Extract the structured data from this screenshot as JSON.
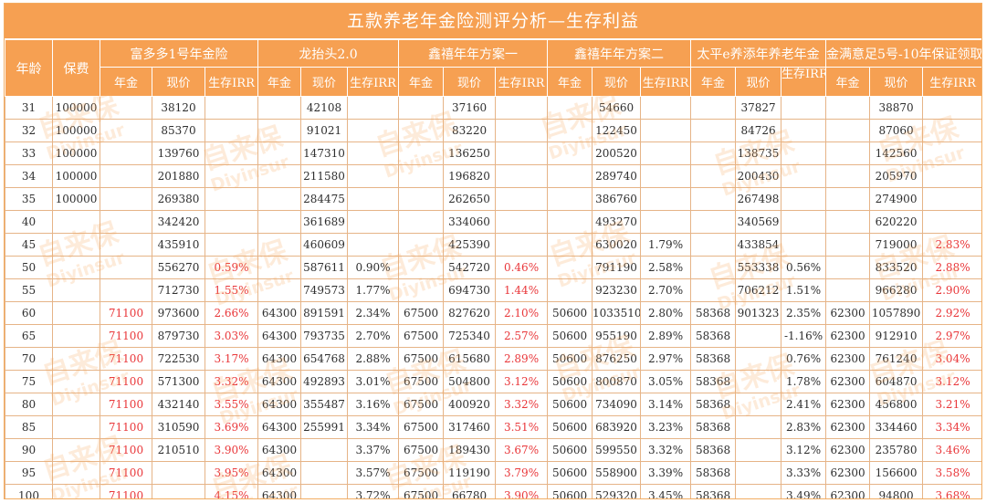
{
  "title": "五款养老年金险测评分析—生存利益",
  "headers": {
    "age": "年龄",
    "premium": "保费",
    "products": [
      "富多多1号年金险",
      "龙抬头2.0",
      "鑫禧年年方案一",
      "鑫禧年年方案二",
      "太平e养添年养老年金",
      "金满意足5号-10年保证领取"
    ],
    "sub": [
      "年金",
      "现价",
      "生存IRR"
    ]
  },
  "rows": [
    [
      "31",
      "100000",
      "",
      "38120",
      "",
      "",
      "42108",
      "",
      "",
      "37160",
      "",
      "",
      "54660",
      "",
      "",
      "37827",
      "",
      "",
      "38870",
      ""
    ],
    [
      "32",
      "100000",
      "",
      "85370",
      "",
      "",
      "91021",
      "",
      "",
      "83220",
      "",
      "",
      "122450",
      "",
      "",
      "84726",
      "",
      "",
      "87060",
      ""
    ],
    [
      "33",
      "100000",
      "",
      "139760",
      "",
      "",
      "147310",
      "",
      "",
      "136250",
      "",
      "",
      "200520",
      "",
      "",
      "138735",
      "",
      "",
      "142560",
      ""
    ],
    [
      "34",
      "100000",
      "",
      "201880",
      "",
      "",
      "211580",
      "",
      "",
      "196820",
      "",
      "",
      "289740",
      "",
      "",
      "200430",
      "",
      "",
      "205970",
      ""
    ],
    [
      "35",
      "100000",
      "",
      "269380",
      "",
      "",
      "284475",
      "",
      "",
      "262650",
      "",
      "",
      "386760",
      "",
      "",
      "267498",
      "",
      "",
      "274900",
      ""
    ],
    [
      "40",
      "",
      "",
      "342420",
      "",
      "",
      "361689",
      "",
      "",
      "334060",
      "",
      "",
      "493270",
      "",
      "",
      "340569",
      "",
      "",
      "620220",
      ""
    ],
    [
      "45",
      "",
      "",
      "435910",
      "",
      "",
      "460609",
      "",
      "",
      "425390",
      "",
      "",
      "630020",
      "1.79%",
      "",
      "433854",
      "",
      "",
      "719000",
      "2.83%"
    ],
    [
      "50",
      "",
      "",
      "556270",
      "0.59%",
      "",
      "587611",
      "0.90%",
      "",
      "542720",
      "0.46%",
      "",
      "791190",
      "2.58%",
      "",
      "553338",
      "0.56%",
      "",
      "833520",
      "2.88%"
    ],
    [
      "55",
      "",
      "",
      "712730",
      "1.55%",
      "",
      "749573",
      "1.77%",
      "",
      "694730",
      "1.44%",
      "",
      "923230",
      "2.70%",
      "",
      "706212",
      "1.51%",
      "",
      "966280",
      "2.90%"
    ],
    [
      "60",
      "",
      "71100",
      "973600",
      "2.66%",
      "64300",
      "891591",
      "2.34%",
      "67500",
      "827620",
      "2.10%",
      "50600",
      "1033510",
      "2.80%",
      "58368",
      "901323",
      "2.35%",
      "62300",
      "1057890",
      "2.92%"
    ],
    [
      "65",
      "",
      "71100",
      "879730",
      "3.03%",
      "64300",
      "793735",
      "2.70%",
      "67500",
      "725340",
      "2.57%",
      "50600",
      "955190",
      "2.89%",
      "58368",
      "",
      "-1.16%",
      "62300",
      "912910",
      "2.97%"
    ],
    [
      "70",
      "",
      "71100",
      "722530",
      "3.17%",
      "64300",
      "654768",
      "2.88%",
      "67500",
      "615680",
      "2.89%",
      "50600",
      "876250",
      "2.97%",
      "58368",
      "",
      "0.76%",
      "62300",
      "761240",
      "3.04%"
    ],
    [
      "75",
      "",
      "71100",
      "571300",
      "3.32%",
      "64300",
      "492893",
      "3.01%",
      "67500",
      "504800",
      "3.12%",
      "50600",
      "800870",
      "3.05%",
      "58368",
      "",
      "1.78%",
      "62300",
      "604870",
      "3.12%"
    ],
    [
      "80",
      "",
      "71100",
      "432140",
      "3.55%",
      "64300",
      "355487",
      "3.16%",
      "67500",
      "400920",
      "3.32%",
      "50600",
      "734090",
      "3.14%",
      "58368",
      "",
      "2.41%",
      "62300",
      "456800",
      "3.21%"
    ],
    [
      "85",
      "",
      "71100",
      "310590",
      "3.69%",
      "64300",
      "255991",
      "3.34%",
      "67500",
      "317460",
      "3.51%",
      "50600",
      "683920",
      "3.23%",
      "58368",
      "",
      "2.83%",
      "62300",
      "334460",
      "3.34%"
    ],
    [
      "90",
      "",
      "71100",
      "210510",
      "3.90%",
      "64300",
      "",
      "3.37%",
      "67500",
      "189430",
      "3.67%",
      "50600",
      "599550",
      "3.32%",
      "58368",
      "",
      "3.12%",
      "62300",
      "235780",
      "3.46%"
    ],
    [
      "95",
      "",
      "71100",
      "",
      "3.95%",
      "64300",
      "",
      "3.57%",
      "67500",
      "119190",
      "3.79%",
      "50600",
      "558900",
      "3.39%",
      "58368",
      "",
      "3.33%",
      "62300",
      "156600",
      "3.58%"
    ],
    [
      "100",
      "",
      "71100",
      "",
      "4.15%",
      "64300",
      "",
      "3.72%",
      "67500",
      "66780",
      "3.90%",
      "50600",
      "529320",
      "3.45%",
      "58368",
      "",
      "3.49%",
      "62300",
      "94800",
      "3.68%"
    ]
  ],
  "red_columns": [
    2,
    4,
    10,
    19
  ],
  "watermark": {
    "cn": "自来保",
    "en": "Diyinsur"
  },
  "colors": {
    "header_bg": "#f6a052",
    "border": "#e6b487",
    "highlight": "#e9373a"
  }
}
